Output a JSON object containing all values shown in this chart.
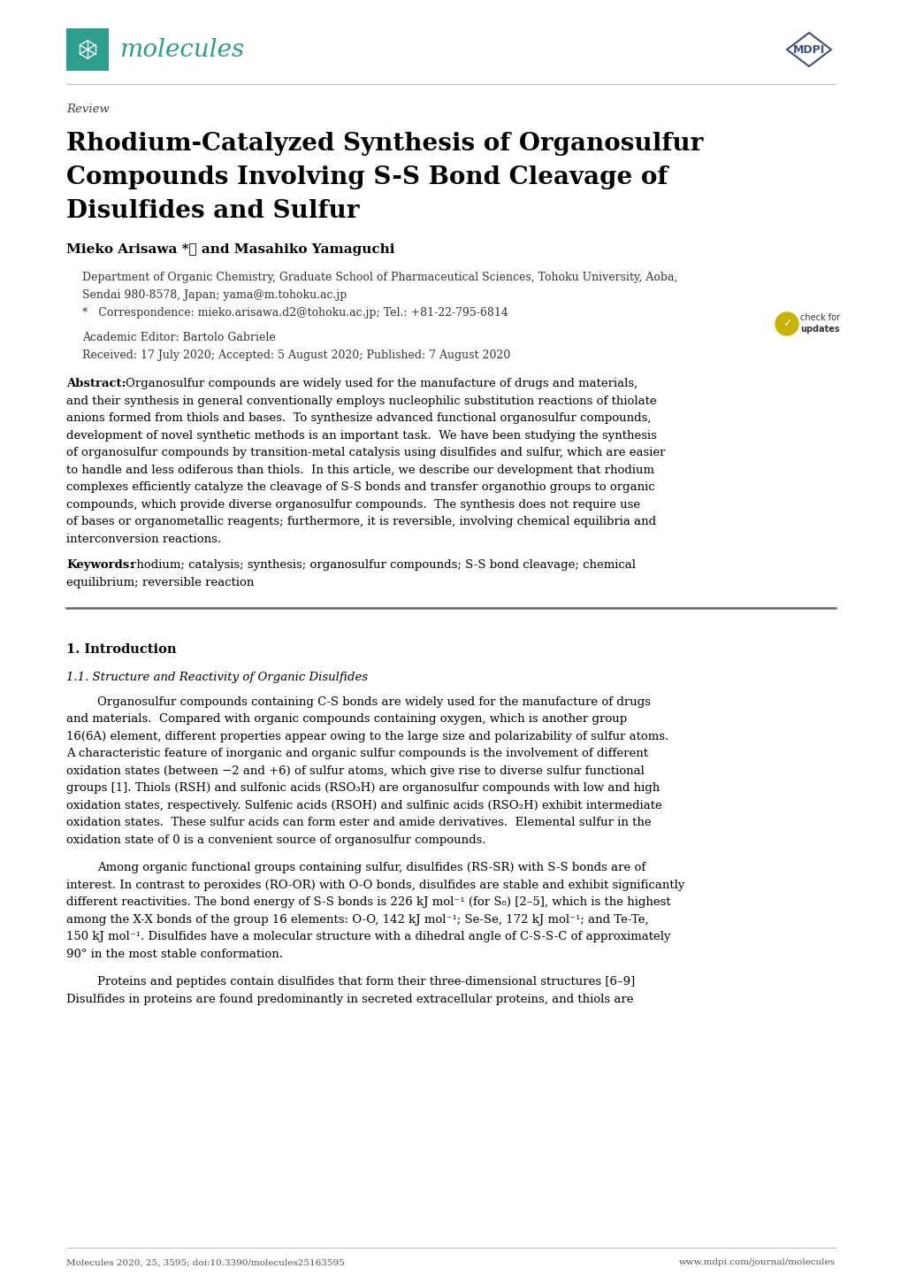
{
  "background_color": "#ffffff",
  "teal_color": "#2d9d8f",
  "mdpi_color": "#3d4f7c",
  "page_width": 10.2,
  "page_height": 14.42,
  "dpi": 100,
  "L": 0.75,
  "R": 9.45,
  "journal_name": "molecules",
  "review_label": "Review",
  "title_line1": "Rhodium-Catalyzed Synthesis of Organosulfur",
  "title_line2": "Compounds Involving S-S Bond Cleavage of",
  "title_line3": "Disulfides and Sulfur",
  "authors": "Mieko Arisawa *ⓘ and Masahiko Yamaguchi",
  "affiliation1": "Department of Organic Chemistry, Graduate School of Pharmaceutical Sciences, Tohoku University, Aoba,",
  "affiliation2": "Sendai 980-8578, Japan; yama@m.tohoku.ac.jp",
  "correspondence": "*   Correspondence: mieko.arisawa.d2@tohoku.ac.jp; Tel.: +81-22-795-6814",
  "academic_editor": "Academic Editor: Bartolo Gabriele",
  "received": "Received: 17 July 2020; Accepted: 5 August 2020; Published: 7 August 2020",
  "abstract_label": "Abstract:",
  "abstract_lines": [
    "Organosulfur compounds are widely used for the manufacture of drugs and materials,",
    "and their synthesis in general conventionally employs nucleophilic substitution reactions of thiolate",
    "anions formed from thiols and bases.  To synthesize advanced functional organosulfur compounds,",
    "development of novel synthetic methods is an important task.  We have been studying the synthesis",
    "of organosulfur compounds by transition-metal catalysis using disulfides and sulfur, which are easier",
    "to handle and less odiferous than thiols.  In this article, we describe our development that rhodium",
    "complexes efficiently catalyze the cleavage of S-S bonds and transfer organothio groups to organic",
    "compounds, which provide diverse organosulfur compounds.  The synthesis does not require use",
    "of bases or organometallic reagents; furthermore, it is reversible, involving chemical equilibria and",
    "interconversion reactions."
  ],
  "keywords_label": "Keywords:",
  "keywords_lines": [
    "rhodium; catalysis; synthesis; organosulfur compounds; S-S bond cleavage; chemical",
    "equilibrium; reversible reaction"
  ],
  "section1_title": "1. Introduction",
  "section1_subtitle": "1.1. Structure and Reactivity of Organic Disulfides",
  "intro_para1_lines": [
    "Organosulfur compounds containing C-S bonds are widely used for the manufacture of drugs",
    "and materials.  Compared with organic compounds containing oxygen, which is another group",
    "16(6A) element, different properties appear owing to the large size and polarizability of sulfur atoms.",
    "A characteristic feature of inorganic and organic sulfur compounds is the involvement of different",
    "oxidation states (between −2 and +6) of sulfur atoms, which give rise to diverse sulfur functional",
    "groups [1]. Thiols (RSH) and sulfonic acids (RSO₃H) are organosulfur compounds with low and high",
    "oxidation states, respectively. Sulfenic acids (RSOH) and sulfinic acids (RSO₂H) exhibit intermediate",
    "oxidation states.  These sulfur acids can form ester and amide derivatives.  Elemental sulfur in the",
    "oxidation state of 0 is a convenient source of organosulfur compounds."
  ],
  "intro_para2_lines": [
    "Among organic functional groups containing sulfur, disulfides (RS-SR) with S-S bonds are of",
    "interest. In contrast to peroxides (RO-OR) with O-O bonds, disulfides are stable and exhibit significantly",
    "different reactivities. The bond energy of S-S bonds is 226 kJ mol⁻¹ (for S₈) [2–5], which is the highest",
    "among the X-X bonds of the group 16 elements: O-O, 142 kJ mol⁻¹; Se-Se, 172 kJ mol⁻¹; and Te-Te,",
    "150 kJ mol⁻¹. Disulfides have a molecular structure with a dihedral angle of C-S-S-C of approximately",
    "90° in the most stable conformation."
  ],
  "intro_para3_lines": [
    "Proteins and peptides contain disulfides that form their three-dimensional structures [6–9]",
    "Disulfides in proteins are found predominantly in secreted extracellular proteins, and thiols are"
  ],
  "footer_left": "Molecules 2020, 25, 3595; doi:10.3390/molecules25163595",
  "footer_right": "www.mdpi.com/journal/molecules"
}
